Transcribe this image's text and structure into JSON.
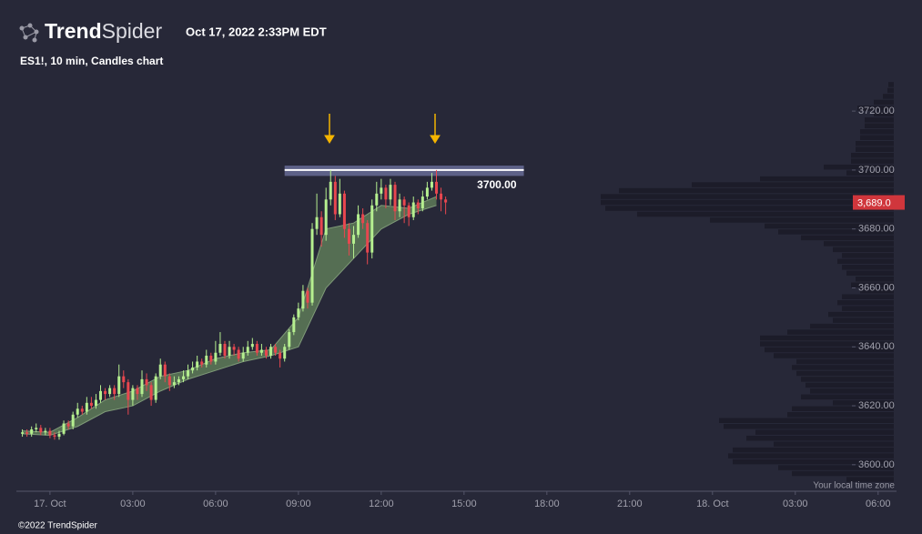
{
  "header": {
    "brand_bold": "Trend",
    "brand_light": "Spider",
    "timestamp": "Oct 17, 2022 2:33PM EDT"
  },
  "footer": {
    "copyright": "©2022 TrendSpider"
  },
  "chart_data": {
    "type": "candlestick",
    "title": "ES1!, 10 min, Candles chart",
    "timezone_note": "Your local time zone",
    "up_color": "#b5ef8f",
    "down_color": "#e8474f",
    "ribbon_color": "#5e7a58",
    "xlim": [
      -73,
      1840
    ],
    "xticks": [
      {
        "value": 0,
        "label": "17. Oct"
      },
      {
        "value": 180,
        "label": "03:00"
      },
      {
        "value": 360,
        "label": "06:00"
      },
      {
        "value": 540,
        "label": "09:00"
      },
      {
        "value": 720,
        "label": "12:00"
      },
      {
        "value": 900,
        "label": "15:00"
      },
      {
        "value": 1080,
        "label": "18:00"
      },
      {
        "value": 1260,
        "label": "21:00"
      },
      {
        "value": 1440,
        "label": "18. Oct"
      },
      {
        "value": 1620,
        "label": "03:00"
      },
      {
        "value": 1800,
        "label": "06:00"
      }
    ],
    "ylim": [
      3591,
      3733
    ],
    "yticks": [
      {
        "value": 3600,
        "label": "3600.00"
      },
      {
        "value": 3620,
        "label": "3620.00"
      },
      {
        "value": 3640,
        "label": "3640.00"
      },
      {
        "value": 3660,
        "label": "3660.00"
      },
      {
        "value": 3680,
        "label": "3680.00"
      },
      {
        "value": 3700,
        "label": "3700.00"
      },
      {
        "value": 3720,
        "label": "3720.00"
      }
    ],
    "x": [
      -60,
      -50,
      -40,
      -30,
      -20,
      -10,
      0,
      10,
      20,
      30,
      40,
      50,
      60,
      70,
      80,
      90,
      100,
      110,
      120,
      130,
      140,
      150,
      160,
      170,
      180,
      190,
      200,
      210,
      220,
      230,
      240,
      250,
      260,
      270,
      280,
      290,
      300,
      310,
      320,
      330,
      340,
      350,
      360,
      370,
      380,
      390,
      400,
      410,
      420,
      430,
      440,
      450,
      460,
      470,
      480,
      490,
      500,
      510,
      520,
      530,
      540,
      550,
      560,
      570,
      580,
      590,
      600,
      610,
      620,
      630,
      640,
      650,
      660,
      670,
      680,
      690,
      700,
      710,
      720,
      730,
      740,
      750,
      760,
      770,
      780,
      790,
      800,
      810,
      820,
      830,
      840,
      850,
      860
    ],
    "open": [
      3610.5,
      3611,
      3610.5,
      3612,
      3612.5,
      3611,
      3611.5,
      3610,
      3609.5,
      3610.5,
      3614,
      3613,
      3617,
      3619,
      3618,
      3621,
      3620,
      3622,
      3625,
      3624,
      3626,
      3624,
      3630,
      3628,
      3622,
      3626,
      3624,
      3629,
      3627,
      3622,
      3630,
      3634,
      3630,
      3627,
      3628,
      3629,
      3630,
      3632,
      3633,
      3635,
      3634,
      3637,
      3635,
      3638,
      3641,
      3637,
      3640,
      3639,
      3636,
      3638,
      3640,
      3641,
      3638,
      3639,
      3637,
      3640,
      3638,
      3636,
      3640,
      3645,
      3650,
      3653,
      3659,
      3655,
      3680,
      3684,
      3678,
      3690,
      3696,
      3685,
      3692,
      3680,
      3675,
      3678,
      3685,
      3682,
      3672,
      3688,
      3692,
      3694,
      3690,
      3695,
      3686,
      3690,
      3688,
      3684,
      3689,
      3687,
      3691,
      3694,
      3696,
      3692,
      3690
    ],
    "high": [
      3612,
      3612,
      3613,
      3614,
      3613.5,
      3612.5,
      3612.5,
      3611,
      3611.5,
      3615,
      3615,
      3618,
      3621,
      3620,
      3623,
      3623,
      3624,
      3627,
      3626,
      3627,
      3627,
      3634,
      3632,
      3629,
      3627,
      3627,
      3632,
      3631,
      3628,
      3631,
      3636,
      3635,
      3631,
      3630,
      3630,
      3632,
      3634,
      3635,
      3637,
      3636,
      3639,
      3638,
      3642,
      3645,
      3642,
      3642,
      3641,
      3640,
      3640,
      3642,
      3643,
      3642,
      3641,
      3640,
      3641,
      3641,
      3639,
      3641,
      3646,
      3651,
      3655,
      3661,
      3660,
      3682,
      3692,
      3686,
      3694,
      3700,
      3698,
      3697,
      3693,
      3682,
      3681,
      3688,
      3687,
      3683,
      3690,
      3696,
      3697,
      3695,
      3697,
      3696,
      3692,
      3691,
      3689,
      3691,
      3690,
      3693,
      3696,
      3699,
      3700,
      3694,
      3691
    ],
    "low": [
      3609.5,
      3609.5,
      3609.5,
      3611,
      3610,
      3610,
      3609,
      3608.5,
      3608.5,
      3610,
      3612,
      3612,
      3616,
      3617,
      3617,
      3619,
      3619,
      3621,
      3622,
      3623,
      3622,
      3623,
      3626,
      3617,
      3620,
      3622,
      3623,
      3625,
      3620,
      3621,
      3629,
      3628,
      3625,
      3626,
      3627,
      3628,
      3629,
      3631,
      3632,
      3633,
      3633,
      3634,
      3634,
      3637,
      3636,
      3636,
      3637,
      3635,
      3635,
      3637,
      3639,
      3637,
      3637,
      3636,
      3636,
      3637,
      3633,
      3635,
      3639,
      3644,
      3649,
      3652,
      3653,
      3654,
      3678,
      3674,
      3676,
      3688,
      3683,
      3684,
      3677,
      3671,
      3670,
      3677,
      3680,
      3668,
      3670,
      3686,
      3690,
      3687,
      3688,
      3683,
      3684,
      3682,
      3681,
      3683,
      3685,
      3686,
      3690,
      3693,
      3690,
      3686,
      3685
    ],
    "close": [
      3611,
      3610.5,
      3612,
      3612.5,
      3611,
      3611.5,
      3610,
      3609.5,
      3610.5,
      3614,
      3613,
      3617,
      3619,
      3618,
      3621,
      3620,
      3622,
      3625,
      3624,
      3626,
      3624,
      3630,
      3628,
      3622,
      3626,
      3624,
      3629,
      3627,
      3622,
      3630,
      3634,
      3630,
      3627,
      3628,
      3629,
      3630,
      3632,
      3633,
      3635,
      3634,
      3637,
      3635,
      3638,
      3641,
      3637,
      3640,
      3639,
      3636,
      3638,
      3640,
      3641,
      3638,
      3639,
      3637,
      3640,
      3638,
      3636,
      3640,
      3645,
      3650,
      3653,
      3659,
      3655,
      3680,
      3684,
      3678,
      3690,
      3696,
      3685,
      3692,
      3680,
      3675,
      3678,
      3685,
      3682,
      3672,
      3688,
      3692,
      3694,
      3690,
      3695,
      3686,
      3690,
      3688,
      3684,
      3689,
      3687,
      3691,
      3694,
      3696,
      3692,
      3690,
      3689
    ],
    "ribbon": {
      "x": [
        -60,
        0,
        60,
        120,
        180,
        240,
        300,
        360,
        420,
        480,
        540,
        600,
        660,
        720,
        780,
        840
      ],
      "upper": [
        3611.5,
        3611,
        3616,
        3622,
        3625,
        3630,
        3632,
        3636,
        3638,
        3639,
        3650,
        3680,
        3682,
        3688,
        3687,
        3691
      ],
      "lower": [
        3610.5,
        3610,
        3613,
        3618,
        3620,
        3625,
        3629,
        3632,
        3635,
        3637,
        3640,
        3660,
        3670,
        3680,
        3685,
        3688
      ]
    },
    "level": {
      "value": 3700,
      "label": "3700.00",
      "band_top": 3701.5,
      "band_bottom": 3698,
      "x_from": 510,
      "x_to": 1030
    },
    "current_price": {
      "value": 3689,
      "label": "3,689.0"
    },
    "volume_profile": {
      "levels": [
        3594,
        3596,
        3598,
        3600,
        3602,
        3604,
        3606,
        3608,
        3610,
        3612,
        3614,
        3616,
        3618,
        3620,
        3622,
        3624,
        3626,
        3628,
        3630,
        3632,
        3634,
        3636,
        3638,
        3640,
        3642,
        3644,
        3646,
        3648,
        3650,
        3652,
        3654,
        3656,
        3658,
        3660,
        3662,
        3664,
        3666,
        3668,
        3670,
        3672,
        3674,
        3676,
        3678,
        3680,
        3682,
        3684,
        3686,
        3688,
        3690,
        3692,
        3694,
        3696,
        3698,
        3700,
        3702,
        3704,
        3706,
        3708,
        3710,
        3712,
        3714,
        3716,
        3718,
        3720,
        3722,
        3724,
        3726,
        3728
      ],
      "volumes": [
        52,
        112,
        127,
        177,
        182,
        177,
        132,
        162,
        152,
        187,
        192,
        117,
        112,
        67,
        102,
        92,
        97,
        102,
        107,
        112,
        107,
        132,
        142,
        147,
        147,
        117,
        92,
        67,
        72,
        57,
        62,
        57,
        37,
        47,
        42,
        52,
        57,
        62,
        57,
        67,
        77,
        102,
        127,
        142,
        202,
        282,
        317,
        322,
        322,
        302,
        222,
        147,
        52,
        77,
        47,
        47,
        42,
        42,
        37,
        37,
        32,
        32,
        22,
        40,
        22,
        12,
        7,
        6
      ]
    }
  }
}
